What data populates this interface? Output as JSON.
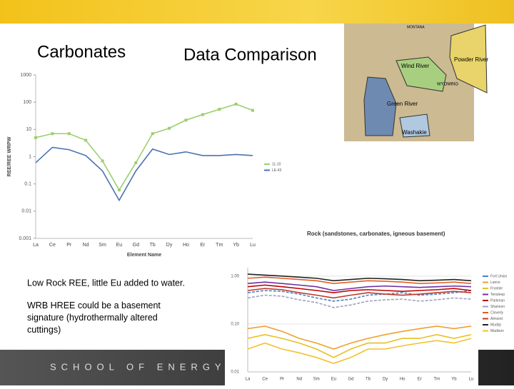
{
  "slide": {
    "title_left": "Carbonates",
    "title_right": "Data Comparison",
    "notes": [
      "Low Rock REE, little Eu added to water.",
      "WRB HREE could be a basement signature (hydrothermally altered cuttings)"
    ],
    "footer": "SCHOOL OF ENERGY RESOURCES"
  },
  "map": {
    "labels": [
      "Powder River",
      "Wind River",
      "Green River",
      "Washakie",
      "WYOMING",
      "MONTANA"
    ]
  },
  "chart_data": [
    {
      "type": "line",
      "categories": [
        "La",
        "Ce",
        "Pr",
        "Nd",
        "Sm",
        "Eu",
        "Gd",
        "Tb",
        "Dy",
        "Ho",
        "Er",
        "Tm",
        "Yb",
        "Lu"
      ],
      "x_label": "Element Name",
      "y_label": "REE/REE WRPW",
      "log_y": true,
      "ylim": [
        0.001,
        1000
      ],
      "yticks": [
        0.001,
        0.01,
        0.1,
        1,
        10,
        100,
        1000
      ],
      "grid": false,
      "series": [
        {
          "name": "11-10",
          "color": "#9ccf6e",
          "marker": true,
          "values": [
            5,
            7,
            7,
            4,
            0.7,
            0.06,
            0.6,
            7,
            11,
            22,
            35,
            55,
            85,
            50
          ]
        },
        {
          "name": "LE-43",
          "color": "#4a72b0",
          "marker": false,
          "values": [
            0.6,
            2.2,
            1.8,
            1.1,
            0.3,
            0.025,
            0.3,
            1.9,
            1.2,
            1.5,
            1.1,
            1.1,
            1.2,
            1.1
          ]
        }
      ]
    },
    {
      "type": "line",
      "title": "Rock (sandstones, carbonates, igneous basement)",
      "categories": [
        "La",
        "Ce",
        "Pr",
        "Nd",
        "Sm",
        "Eu",
        "Gd",
        "Tb",
        "Dy",
        "Ho",
        "Er",
        "Tm",
        "Yb",
        "Lu"
      ],
      "log_y": true,
      "ylim": [
        0.01,
        1.5
      ],
      "yticks": [
        {
          "value": 0.01,
          "label": "0.01"
        },
        {
          "value": 0.1,
          "label": "0.10"
        },
        {
          "value": 1,
          "label": "1.00"
        }
      ],
      "grid": true,
      "series": [
        {
          "name": "Fort Union",
          "color": "#4f81bd",
          "dashed": true,
          "values": [
            0.45,
            0.5,
            0.48,
            0.42,
            0.35,
            0.3,
            0.33,
            0.4,
            0.42,
            0.45,
            0.4,
            0.42,
            0.45,
            0.5
          ]
        },
        {
          "name": "Lance",
          "color": "#f0a030",
          "values": [
            0.08,
            0.09,
            0.07,
            0.05,
            0.04,
            0.03,
            0.04,
            0.05,
            0.06,
            0.07,
            0.08,
            0.09,
            0.08,
            0.09
          ]
        },
        {
          "name": "Frontier",
          "color": "#e8c020",
          "values": [
            0.05,
            0.06,
            0.05,
            0.04,
            0.03,
            0.02,
            0.03,
            0.04,
            0.04,
            0.05,
            0.05,
            0.06,
            0.05,
            0.06
          ]
        },
        {
          "name": "Tensleep",
          "color": "#7030a0",
          "values": [
            0.7,
            0.75,
            0.7,
            0.65,
            0.6,
            0.5,
            0.55,
            0.6,
            0.62,
            0.6,
            0.58,
            0.6,
            0.62,
            0.6
          ]
        },
        {
          "name": "Parkman",
          "color": "#c00000",
          "values": [
            0.6,
            0.65,
            0.6,
            0.55,
            0.5,
            0.45,
            0.5,
            0.52,
            0.5,
            0.48,
            0.5,
            0.52,
            0.55,
            0.5
          ]
        },
        {
          "name": "Shannon",
          "color": "#a0a0c0",
          "dashed": true,
          "values": [
            0.35,
            0.4,
            0.38,
            0.32,
            0.28,
            0.22,
            0.25,
            0.3,
            0.32,
            0.33,
            0.3,
            0.32,
            0.35,
            0.33
          ]
        },
        {
          "name": "Cloverly",
          "color": "#e06020",
          "values": [
            0.9,
            0.95,
            0.9,
            0.85,
            0.8,
            0.7,
            0.75,
            0.8,
            0.78,
            0.75,
            0.7,
            0.72,
            0.75,
            0.7
          ]
        },
        {
          "name": "Almond",
          "color": "#c0392b",
          "values": [
            0.5,
            0.55,
            0.52,
            0.45,
            0.4,
            0.35,
            0.4,
            0.45,
            0.42,
            0.4,
            0.42,
            0.45,
            0.48,
            0.45
          ]
        },
        {
          "name": "Muddy",
          "color": "#222222",
          "values": [
            1.1,
            1.05,
            1,
            0.95,
            0.9,
            0.8,
            0.85,
            0.9,
            0.88,
            0.85,
            0.8,
            0.82,
            0.85,
            0.8
          ]
        },
        {
          "name": "Madison",
          "color": "#f2c12e",
          "values": [
            0.03,
            0.04,
            0.03,
            0.025,
            0.02,
            0.015,
            0.02,
            0.03,
            0.03,
            0.035,
            0.04,
            0.045,
            0.04,
            0.05
          ]
        }
      ]
    }
  ]
}
